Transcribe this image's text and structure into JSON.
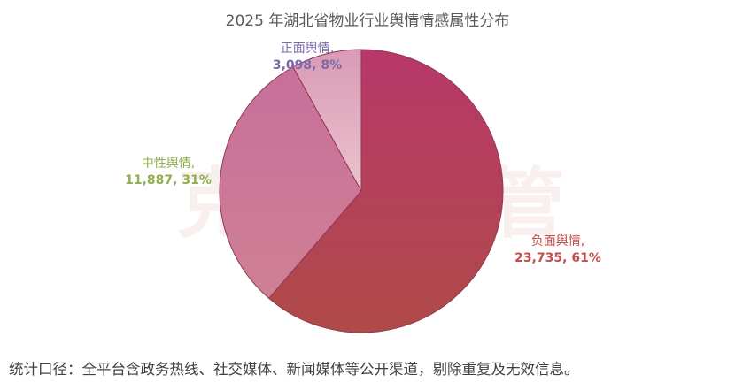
{
  "chart_data": {
    "type": "pie",
    "title": "2025 年湖北省物业行业舆情情感属性分布",
    "slices": [
      {
        "name": "负面舆情,",
        "value_label": "23,735, 61%",
        "value": 23735,
        "percent": 61,
        "color": "#b43a66"
      },
      {
        "name": "中性舆情,",
        "value_label": "11,887, 31%",
        "value": 11887,
        "percent": 31,
        "color": "#c9739a"
      },
      {
        "name": "正面舆情,",
        "value_label": "3,098, 8%",
        "value": 3098,
        "percent": 8,
        "color": "#e2aebf"
      }
    ],
    "legend": "none"
  },
  "watermark": "克而瑞物管",
  "footnote": "统计口径：全平台含政务热线、社交媒体、新闻媒体等公开渠道，剔除重复及无效信息。"
}
